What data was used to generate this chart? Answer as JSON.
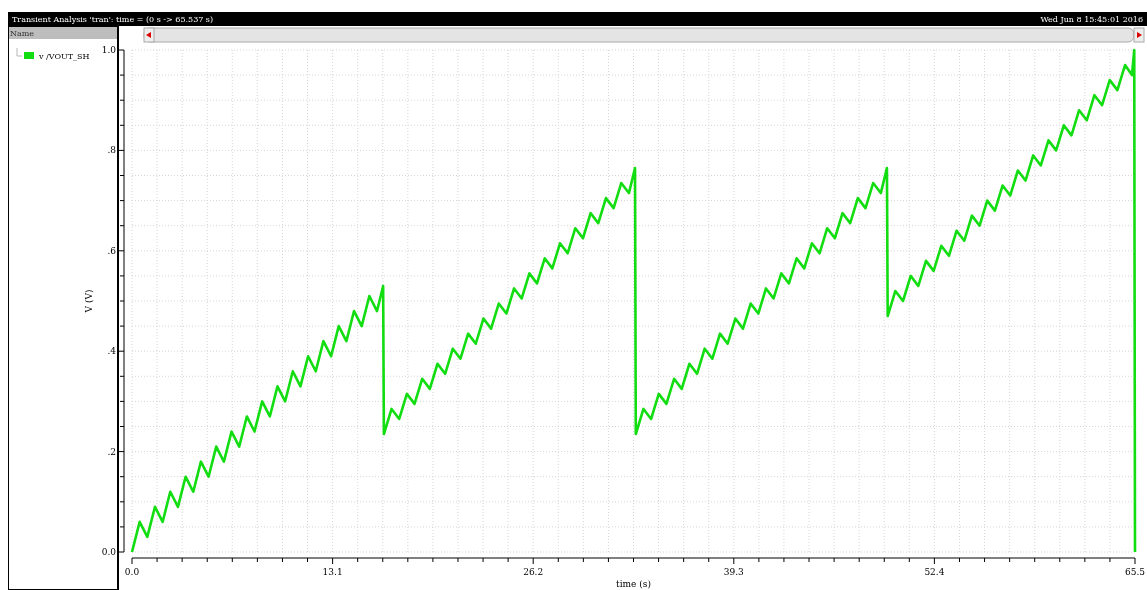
{
  "chart_data": {
    "type": "line",
    "title": "Transient Analysis 'tran': time = (0 s -> 65.537 s)",
    "annotations": [
      "Wed Jun 8 15:45:01 2016"
    ],
    "xlabel": "time (s)",
    "ylabel": "V (V)",
    "legend_title": "Name",
    "legend": "left",
    "grid": true,
    "line_style": "solid",
    "xlim": [
      0,
      65.5
    ],
    "ylim": [
      0,
      1.0
    ],
    "xticks": [
      {
        "value": 0,
        "label": "0.0"
      },
      {
        "value": 1.6375,
        "label": null
      },
      {
        "value": 3.275,
        "label": null
      },
      {
        "value": 4.9125,
        "label": null
      },
      {
        "value": 6.55,
        "label": null
      },
      {
        "value": 8.1875,
        "label": null
      },
      {
        "value": 9.825,
        "label": null
      },
      {
        "value": 11.4625,
        "label": null
      },
      13.1,
      {
        "value": 14.7375,
        "label": null
      },
      {
        "value": 16.375,
        "label": null
      },
      {
        "value": 18.0125,
        "label": null
      },
      {
        "value": 19.65,
        "label": null
      },
      {
        "value": 21.2875,
        "label": null
      },
      {
        "value": 22.925,
        "label": null
      },
      {
        "value": 24.5625,
        "label": null
      },
      26.2,
      {
        "value": 27.8375,
        "label": null
      },
      {
        "value": 29.475,
        "label": null
      },
      {
        "value": 31.1125,
        "label": null
      },
      {
        "value": 32.75,
        "label": null
      },
      {
        "value": 34.3875,
        "label": null
      },
      {
        "value": 36.025,
        "label": null
      },
      {
        "value": 37.6625,
        "label": null
      },
      39.3,
      {
        "value": 40.9375,
        "label": null
      },
      {
        "value": 42.575,
        "label": null
      },
      {
        "value": 44.2125,
        "label": null
      },
      {
        "value": 45.85,
        "label": null
      },
      {
        "value": 47.4875,
        "label": null
      },
      {
        "value": 49.125,
        "label": null
      },
      {
        "value": 50.7625,
        "label": null
      },
      52.4,
      {
        "value": 54.0375,
        "label": null
      },
      {
        "value": 55.675,
        "label": null
      },
      {
        "value": 57.3125,
        "label": null
      },
      {
        "value": 58.95,
        "label": null
      },
      {
        "value": 60.5875,
        "label": null
      },
      {
        "value": 62.225,
        "label": null
      },
      {
        "value": 63.8625,
        "label": null
      },
      65.5
    ],
    "yticks": [
      {
        "value": 0,
        "label": "0.0"
      },
      {
        "value": 0.05,
        "label": null
      },
      {
        "value": 0.1,
        "label": null
      },
      {
        "value": 0.15,
        "label": null
      },
      {
        "value": 0.2,
        "label": ".2"
      },
      {
        "value": 0.25,
        "label": null
      },
      {
        "value": 0.3,
        "label": null
      },
      {
        "value": 0.35,
        "label": null
      },
      {
        "value": 0.4,
        "label": ".4"
      },
      {
        "value": 0.45,
        "label": null
      },
      {
        "value": 0.5,
        "label": null
      },
      {
        "value": 0.55,
        "label": null
      },
      {
        "value": 0.6,
        "label": ".6"
      },
      {
        "value": 0.65,
        "label": null
      },
      {
        "value": 0.7,
        "label": null
      },
      {
        "value": 0.75,
        "label": null
      },
      {
        "value": 0.8,
        "label": ".8"
      },
      {
        "value": 0.85,
        "label": null
      },
      {
        "value": 0.9,
        "label": null
      },
      {
        "value": 0.95,
        "label": null
      },
      {
        "value": 1.0,
        "label": "1.0"
      }
    ],
    "series": [
      {
        "name": "v /VOUT_SH",
        "color": "#11dd11",
        "x": [
          0,
          0.5,
          1,
          1.5,
          2,
          2.5,
          3,
          3.5,
          4,
          4.5,
          5,
          5.5,
          6,
          6.5,
          7,
          7.5,
          8,
          8.5,
          9,
          9.5,
          10,
          10.5,
          11,
          11.5,
          12,
          12.5,
          13,
          13.5,
          14,
          14.5,
          15,
          15.5,
          16,
          16.4,
          16.45,
          16.95,
          17.45,
          17.95,
          18.45,
          18.95,
          19.45,
          19.95,
          20.45,
          20.95,
          21.45,
          21.95,
          22.45,
          22.95,
          23.45,
          23.95,
          24.45,
          24.95,
          25.45,
          25.95,
          26.45,
          26.95,
          27.45,
          27.95,
          28.45,
          28.95,
          29.45,
          29.95,
          30.45,
          30.95,
          31.45,
          31.95,
          32.45,
          32.85,
          32.9,
          33.4,
          33.9,
          34.4,
          34.9,
          35.4,
          35.9,
          36.4,
          36.9,
          37.4,
          37.9,
          38.4,
          38.9,
          39.4,
          39.9,
          40.4,
          40.9,
          41.4,
          41.9,
          42.4,
          42.9,
          43.4,
          43.9,
          44.4,
          44.9,
          45.4,
          45.9,
          46.4,
          46.9,
          47.4,
          47.9,
          48.4,
          48.9,
          49.3,
          49.35,
          49.85,
          50.35,
          50.85,
          51.35,
          51.85,
          52.35,
          52.85,
          53.35,
          53.85,
          54.35,
          54.85,
          55.35,
          55.85,
          56.35,
          56.85,
          57.35,
          57.85,
          58.35,
          58.85,
          59.35,
          59.85,
          60.35,
          60.85,
          61.35,
          61.85,
          62.35,
          62.85,
          63.35,
          63.85,
          64.35,
          64.85,
          65.3,
          65.45,
          65.5
        ],
        "values": [
          0,
          0.06,
          0.03,
          0.09,
          0.06,
          0.12,
          0.09,
          0.15,
          0.12,
          0.18,
          0.15,
          0.21,
          0.18,
          0.24,
          0.21,
          0.27,
          0.24,
          0.3,
          0.27,
          0.33,
          0.3,
          0.36,
          0.33,
          0.39,
          0.36,
          0.42,
          0.39,
          0.45,
          0.42,
          0.48,
          0.45,
          0.51,
          0.48,
          0.53,
          0.235,
          0.285,
          0.265,
          0.315,
          0.295,
          0.345,
          0.325,
          0.375,
          0.355,
          0.405,
          0.385,
          0.435,
          0.415,
          0.465,
          0.445,
          0.495,
          0.475,
          0.525,
          0.505,
          0.555,
          0.535,
          0.585,
          0.565,
          0.615,
          0.595,
          0.645,
          0.625,
          0.675,
          0.655,
          0.705,
          0.685,
          0.735,
          0.715,
          0.765,
          0.235,
          0.285,
          0.265,
          0.315,
          0.295,
          0.345,
          0.325,
          0.375,
          0.355,
          0.405,
          0.385,
          0.435,
          0.415,
          0.465,
          0.445,
          0.495,
          0.475,
          0.525,
          0.505,
          0.555,
          0.535,
          0.585,
          0.565,
          0.615,
          0.595,
          0.645,
          0.625,
          0.675,
          0.655,
          0.705,
          0.685,
          0.735,
          0.715,
          0.765,
          0.47,
          0.52,
          0.5,
          0.55,
          0.53,
          0.58,
          0.56,
          0.61,
          0.59,
          0.64,
          0.62,
          0.67,
          0.65,
          0.7,
          0.68,
          0.73,
          0.71,
          0.76,
          0.74,
          0.79,
          0.77,
          0.82,
          0.8,
          0.85,
          0.83,
          0.88,
          0.86,
          0.91,
          0.89,
          0.94,
          0.92,
          0.97,
          0.95,
          1.0,
          0
        ]
      }
    ]
  }
}
